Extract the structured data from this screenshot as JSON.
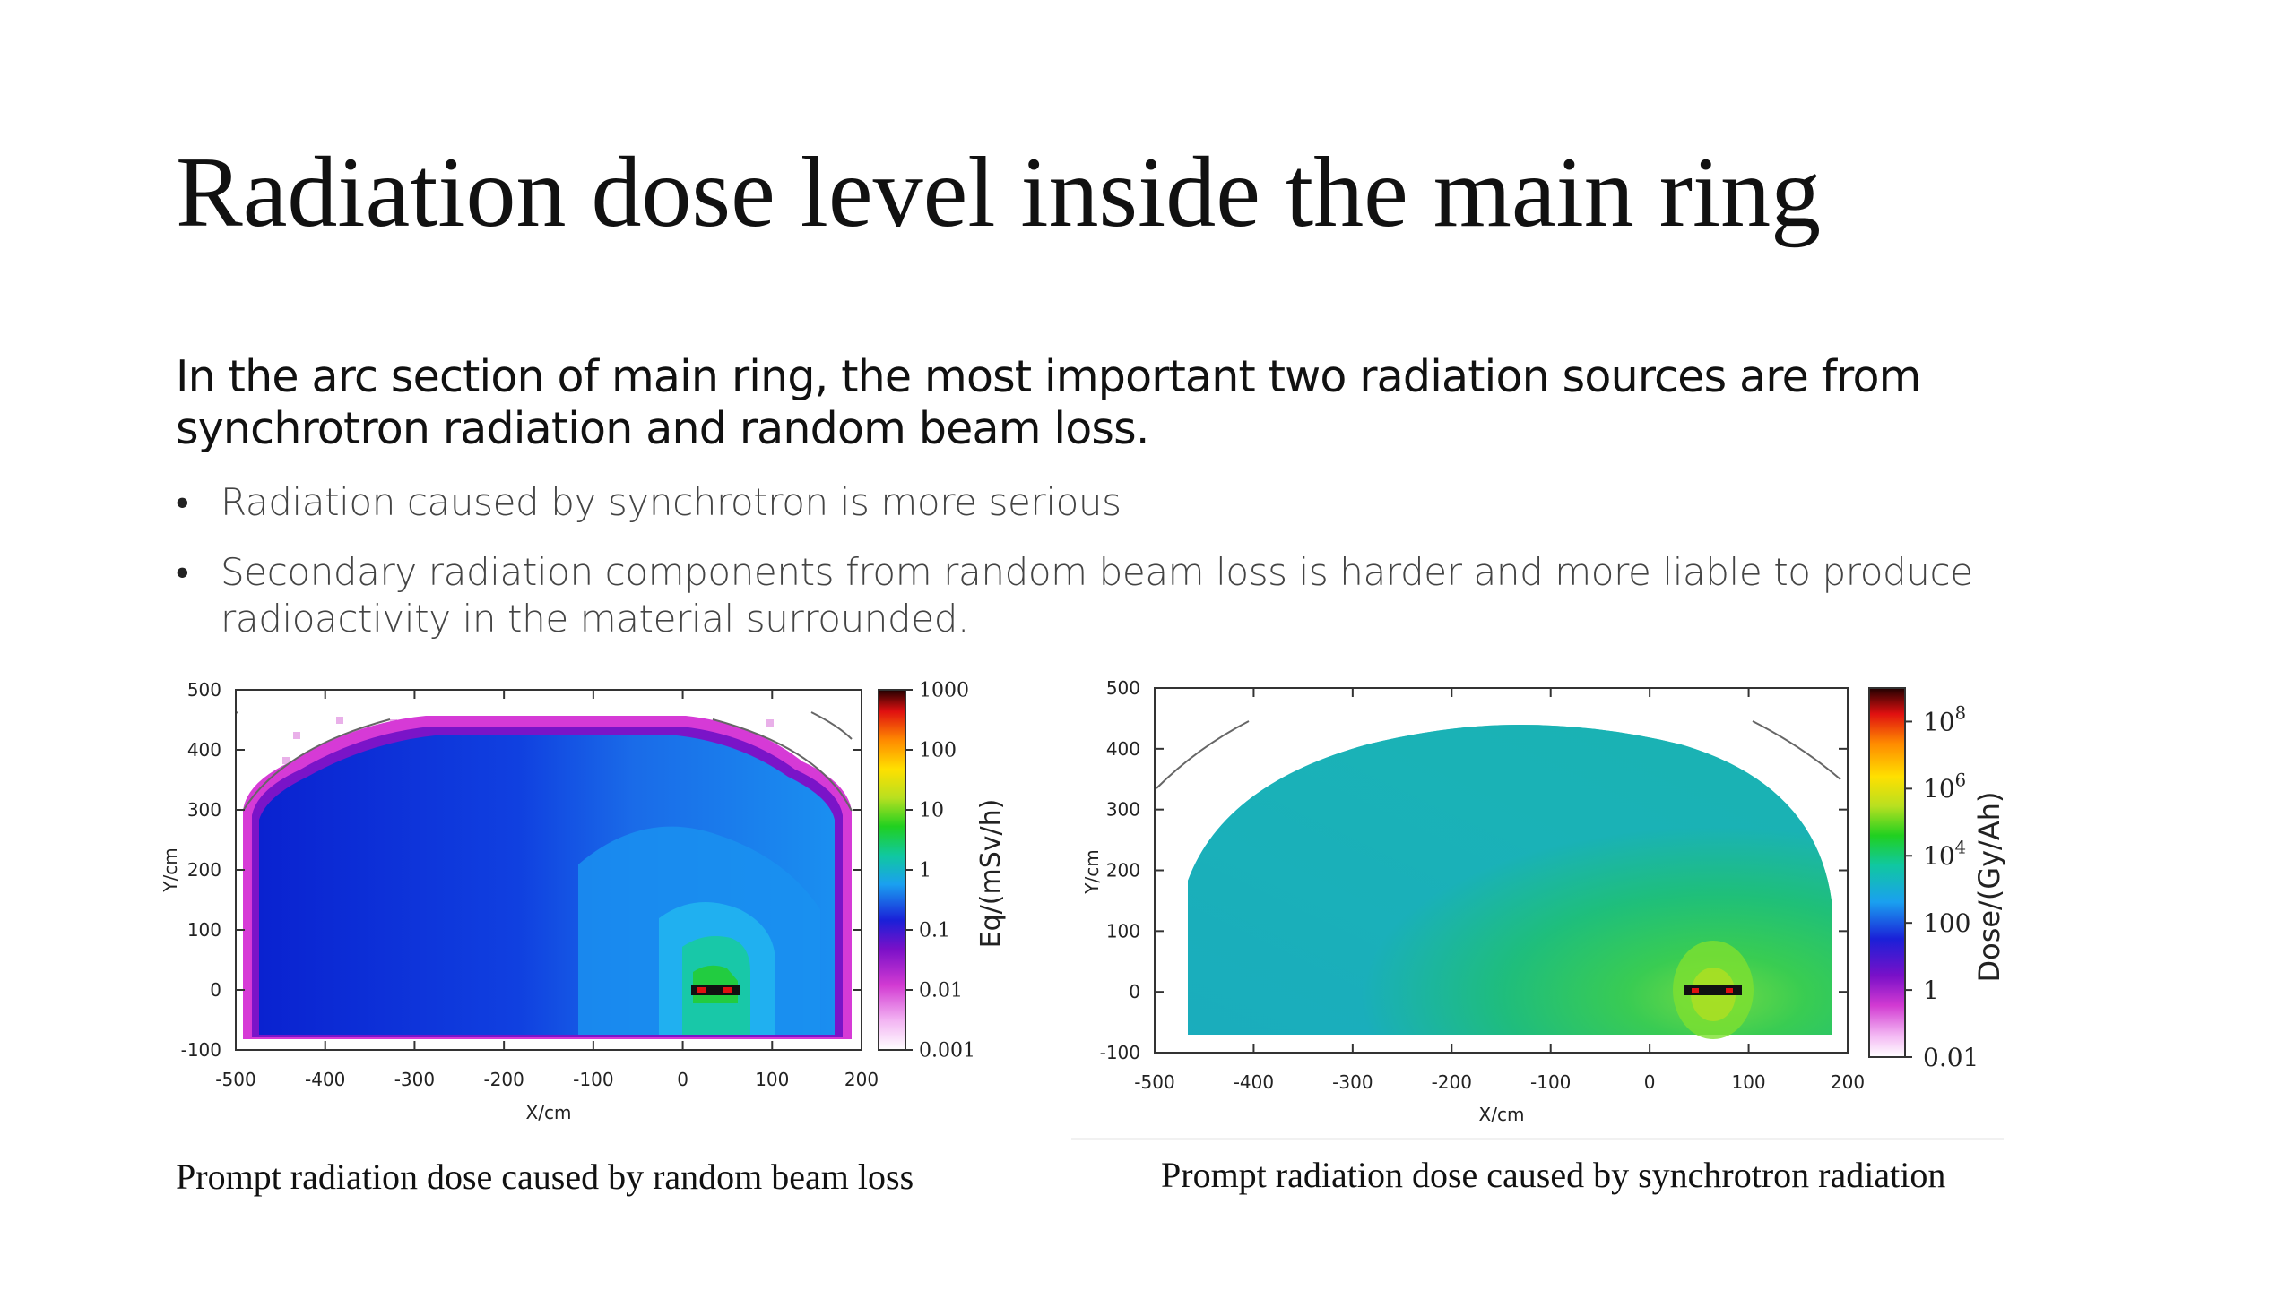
{
  "slide": {
    "title": "Radiation dose level inside the main ring",
    "intro": "In the arc section of main ring, the most important two radiation sources are from synchrotron radiation and random beam loss.",
    "bullets": [
      "Radiation caused by synchrotron is more serious",
      "Secondary radiation components from random beam loss is harder and more liable to produce radioactivity in the material surrounded."
    ],
    "bullet_icon": "bullet-dot",
    "colors": {
      "text": "#111111",
      "bullet_text": "#444444"
    }
  },
  "figures": [
    {
      "caption": "Prompt radiation dose caused by random beam loss",
      "xlabel": "X/cm",
      "ylabel": "Y/cm",
      "xticks": [
        "-500",
        "-400",
        "-300",
        "-200",
        "-100",
        "0",
        "100",
        "200"
      ],
      "yticks": [
        "500",
        "400",
        "300",
        "200",
        "100",
        "0",
        "-100"
      ],
      "colorbar_label": "Eq/(mSv/h)",
      "colorbar_ticks": [
        "1000",
        "100",
        "10",
        "1",
        "0.1",
        "0.01",
        "0.001"
      ]
    },
    {
      "caption": "Prompt radiation dose caused by synchrotron radiation",
      "xlabel": "X/cm",
      "ylabel": "Y/cm",
      "xticks": [
        "-500",
        "-400",
        "-300",
        "-200",
        "-100",
        "0",
        "100",
        "200"
      ],
      "yticks": [
        "500",
        "400",
        "300",
        "200",
        "100",
        "0",
        "-100"
      ],
      "colorbar_label": "Dose/(Gy/Ah)",
      "colorbar_ticks": [
        {
          "base": "10",
          "sup": "8"
        },
        {
          "base": "10",
          "sup": "6"
        },
        {
          "base": "10",
          "sup": "4"
        },
        {
          "base": "100",
          "sup": ""
        },
        {
          "base": "1",
          "sup": ""
        },
        {
          "base": "0.01",
          "sup": ""
        }
      ]
    }
  ],
  "chart_data": [
    {
      "type": "heatmap",
      "title": "",
      "xlabel": "X/cm",
      "ylabel": "Y/cm",
      "xlim": [
        -500,
        200
      ],
      "ylim": [
        -100,
        500
      ],
      "colorbar": {
        "label": "Eq/(mSv/h)",
        "scale": "log",
        "range": [
          0.001,
          1000
        ]
      },
      "source_position": [
        -20,
        0
      ]
    },
    {
      "type": "heatmap",
      "title": "",
      "xlabel": "X/cm",
      "ylabel": "Y/cm",
      "xlim": [
        -500,
        200
      ],
      "ylim": [
        -100,
        500
      ],
      "colorbar": {
        "label": "Dose/(Gy/Ah)",
        "scale": "log",
        "range": [
          0.01,
          1000000000.0
        ]
      },
      "source_position": [
        -20,
        0
      ]
    }
  ]
}
